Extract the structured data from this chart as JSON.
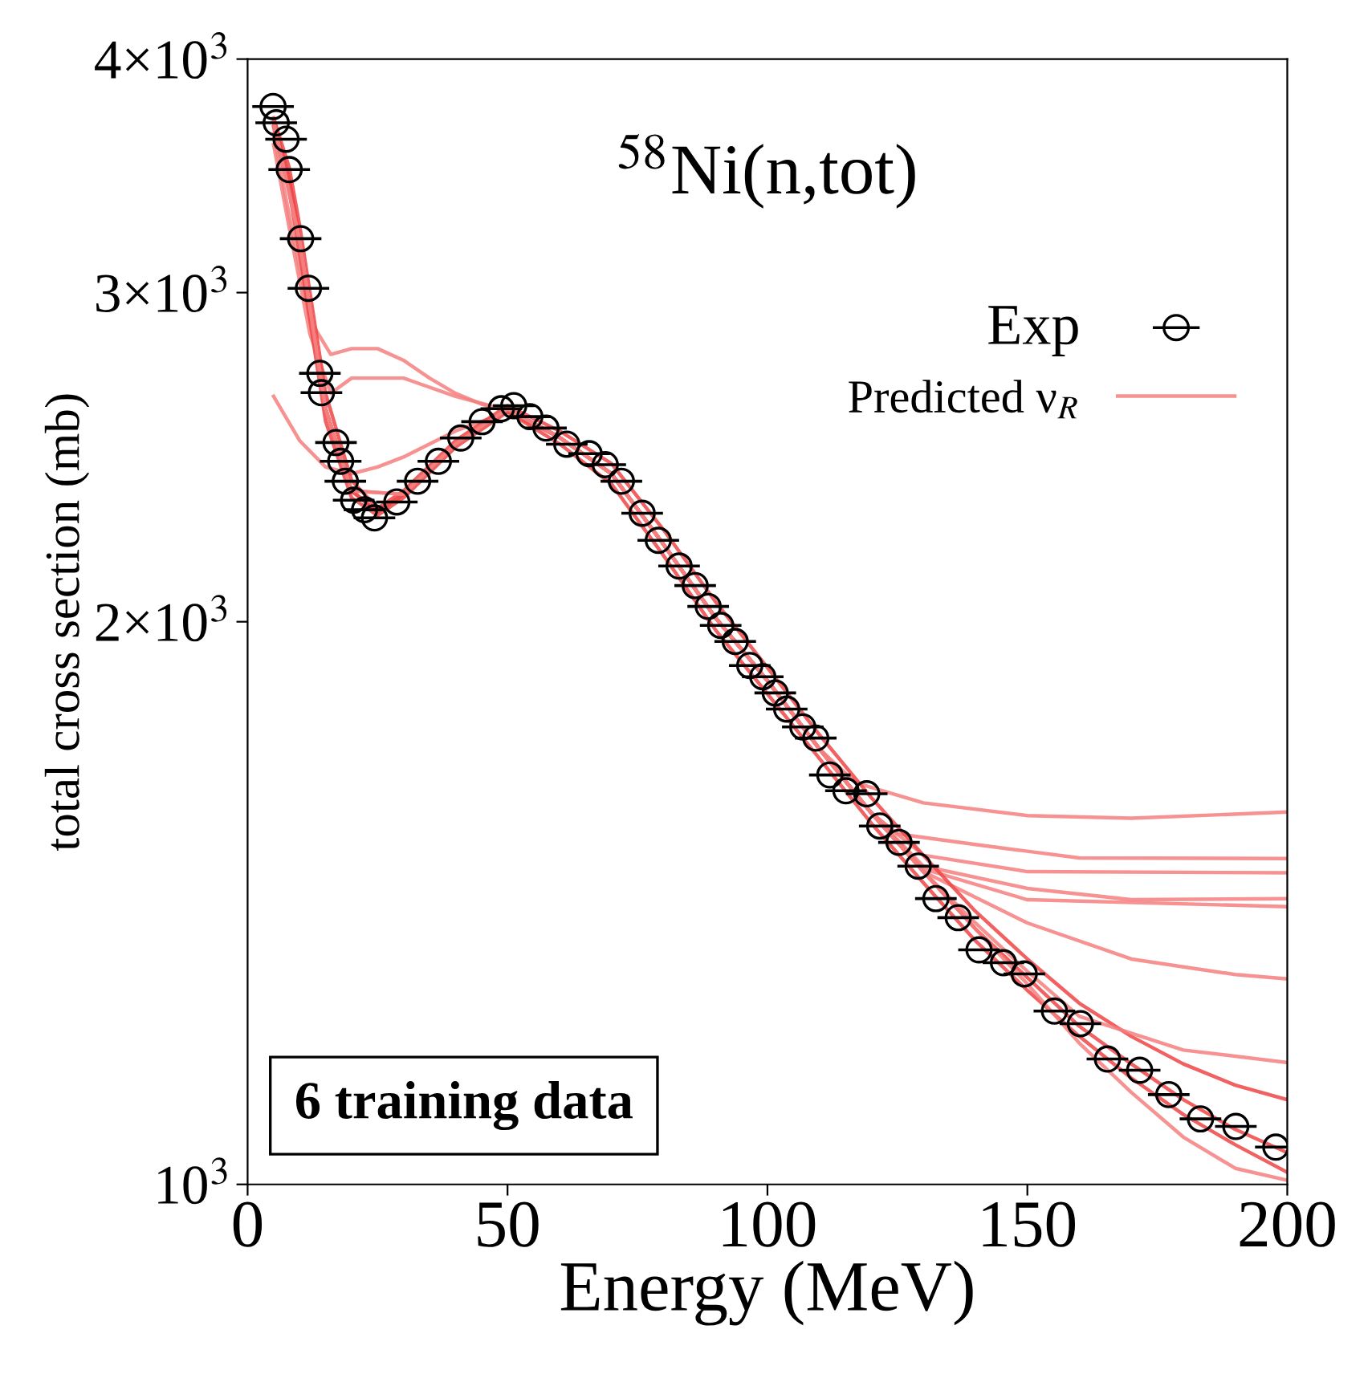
{
  "chart_data": {
    "type": "line",
    "title": "$^{58}$Ni(n,tot)",
    "xlabel": "Energy (MeV)",
    "ylabel": "total cross section (mb)",
    "log": "y",
    "xlim": [
      0,
      200
    ],
    "xticks": [
      0,
      50,
      100,
      150,
      200
    ],
    "ylim": [
      1000,
      4000
    ],
    "yticks": [
      {
        "value": 1000,
        "label": "10$^{3}$"
      },
      {
        "value": 2000,
        "label": "2×10$^{3}$"
      },
      {
        "value": 3000,
        "label": "3×10$^{3}$"
      },
      {
        "value": 4000,
        "label": "4×10$^{3}$"
      }
    ],
    "grid": false,
    "legend": "top right",
    "annotations": [
      "6 training data"
    ],
    "series": [
      {
        "name": "Predicted ν$_{R}$",
        "color": "#f47f7f",
        "x": [
          5,
          8,
          10,
          12,
          15,
          20,
          25,
          30,
          40,
          50,
          60,
          70,
          80,
          90,
          100,
          110,
          117,
          130,
          150,
          170,
          200
        ],
        "values": [
          3700,
          3450,
          3200,
          2950,
          2600,
          2350,
          2290,
          2340,
          2490,
          2600,
          2510,
          2400,
          2200,
          2010,
          1860,
          1710,
          1640,
          1600,
          1575,
          1570,
          1582
        ]
      },
      {
        "color": "#f47f7f",
        "x": [
          5,
          8,
          10,
          12,
          15,
          20,
          25,
          30,
          40,
          50,
          60,
          70,
          80,
          90,
          100,
          110,
          120,
          125,
          140,
          160,
          200
        ],
        "values": [
          3700,
          3450,
          3200,
          2950,
          2600,
          2350,
          2290,
          2340,
          2490,
          2600,
          2510,
          2400,
          2200,
          2010,
          1860,
          1710,
          1580,
          1540,
          1520,
          1495,
          1494
        ]
      },
      {
        "color": "#f47f7f",
        "x": [
          5,
          8,
          10,
          12,
          15,
          20,
          25,
          30,
          40,
          50,
          60,
          70,
          80,
          90,
          100,
          110,
          120,
          130,
          150,
          200
        ],
        "values": [
          3700,
          3450,
          3200,
          2950,
          2600,
          2350,
          2290,
          2340,
          2490,
          2600,
          2510,
          2400,
          2200,
          2010,
          1860,
          1710,
          1580,
          1500,
          1470,
          1468
        ]
      },
      {
        "color": "#f47f7f",
        "x": [
          5,
          8,
          12,
          16,
          20,
          25,
          30,
          35,
          40,
          45,
          50,
          60,
          70,
          80,
          90,
          100,
          110,
          120,
          130,
          150,
          170,
          200
        ],
        "values": [
          3650,
          3300,
          2900,
          2780,
          2800,
          2800,
          2760,
          2700,
          2650,
          2615,
          2590,
          2510,
          2400,
          2200,
          2010,
          1860,
          1710,
          1580,
          1480,
          1440,
          1420,
          1422
        ]
      },
      {
        "color": "#f47f7f",
        "x": [
          5,
          8,
          12,
          16,
          20,
          30,
          40,
          50,
          60,
          70,
          80,
          90,
          100,
          110,
          120,
          130,
          150,
          200
        ],
        "values": [
          3600,
          3250,
          2850,
          2650,
          2700,
          2700,
          2640,
          2595,
          2510,
          2400,
          2200,
          2010,
          1860,
          1710,
          1580,
          1475,
          1420,
          1408
        ]
      },
      {
        "color": "#f47f7f",
        "x": [
          5,
          10,
          15,
          20,
          25,
          30,
          40,
          50,
          60,
          70,
          80,
          90,
          100,
          110,
          120,
          130,
          150,
          170,
          190,
          200
        ],
        "values": [
          2640,
          2500,
          2420,
          2400,
          2420,
          2450,
          2530,
          2590,
          2510,
          2400,
          2200,
          2010,
          1860,
          1710,
          1580,
          1470,
          1380,
          1320,
          1295,
          1288
        ]
      },
      {
        "color": "#ef4545",
        "x": [
          5,
          8,
          10,
          12,
          15,
          20,
          25,
          30,
          40,
          50,
          60,
          70,
          80,
          90,
          100,
          110,
          120,
          130,
          140,
          150,
          160,
          170,
          180,
          190,
          200
        ],
        "values": [
          3700,
          3450,
          3200,
          2950,
          2600,
          2350,
          2290,
          2340,
          2490,
          2600,
          2510,
          2400,
          2200,
          2010,
          1860,
          1710,
          1580,
          1470,
          1370,
          1290,
          1215,
          1160,
          1110,
          1070,
          1040
        ]
      },
      {
        "color": "#ef4545",
        "x": [
          5,
          8,
          10,
          12,
          15,
          20,
          25,
          30,
          40,
          50,
          60,
          70,
          80,
          90,
          100,
          110,
          120,
          130,
          140,
          150,
          160,
          170,
          180,
          190,
          200
        ],
        "values": [
          3720,
          3500,
          3260,
          3000,
          2650,
          2380,
          2300,
          2350,
          2500,
          2610,
          2530,
          2430,
          2240,
          2050,
          1890,
          1740,
          1610,
          1500,
          1400,
          1320,
          1250,
          1200,
          1160,
          1130,
          1110
        ]
      },
      {
        "color": "#ef4545",
        "x": [
          5,
          8,
          10,
          12,
          15,
          20,
          25,
          30,
          40,
          50,
          60,
          70,
          80,
          90,
          100,
          110,
          120,
          130,
          140,
          150,
          160,
          170,
          180,
          190,
          200
        ],
        "values": [
          3680,
          3400,
          3150,
          2900,
          2560,
          2330,
          2280,
          2330,
          2480,
          2590,
          2490,
          2370,
          2170,
          1980,
          1830,
          1690,
          1560,
          1450,
          1350,
          1270,
          1200,
          1140,
          1090,
          1050,
          1015
        ]
      },
      {
        "color": "#f47f7f",
        "x": [
          5,
          10,
          15,
          20,
          30,
          40,
          50,
          60,
          70,
          80,
          90,
          100,
          110,
          120,
          130,
          140,
          150,
          160,
          180,
          200
        ],
        "values": [
          3700,
          3200,
          2600,
          2350,
          2340,
          2490,
          2600,
          2510,
          2400,
          2200,
          2010,
          1860,
          1710,
          1580,
          1470,
          1380,
          1300,
          1230,
          1180,
          1162
        ]
      },
      {
        "color": "#f47f7f",
        "x": [
          5,
          10,
          15,
          20,
          30,
          40,
          50,
          60,
          70,
          80,
          90,
          100,
          110,
          120,
          130,
          140,
          150,
          160,
          170,
          180,
          190,
          200
        ],
        "values": [
          3700,
          3200,
          2600,
          2350,
          2340,
          2490,
          2600,
          2510,
          2400,
          2200,
          2010,
          1860,
          1710,
          1580,
          1470,
          1370,
          1280,
          1190,
          1120,
          1060,
          1020,
          1005
        ]
      },
      {
        "name": "Exp",
        "type": "scatter",
        "color": "#000000",
        "marker": "circle",
        "x": [
          4.9,
          5.5,
          7.4,
          8.0,
          10.2,
          11.7,
          13.9,
          14.2,
          17.0,
          17.9,
          18.8,
          20.4,
          22.5,
          24.4,
          28.7,
          32.7,
          36.7,
          41.0,
          45.1,
          48.8,
          51.2,
          54.3,
          57.4,
          61.4,
          65.7,
          68.8,
          71.9,
          75.9,
          79.0,
          83.0,
          86.1,
          88.6,
          91.0,
          93.8,
          96.6,
          99.1,
          101.5,
          103.7,
          106.8,
          109.3,
          112.0,
          115.1,
          119.1,
          121.6,
          125.3,
          129.0,
          132.4,
          136.7,
          140.7,
          145.4,
          149.4,
          155.2,
          160.2,
          165.4,
          171.6,
          177.2,
          183.3,
          190.1,
          197.8
        ],
        "values": [
          3773,
          3698,
          3624,
          3491,
          3206,
          3016,
          2716,
          2652,
          2494,
          2437,
          2378,
          2323,
          2296,
          2273,
          2318,
          2378,
          2437,
          2508,
          2559,
          2600,
          2610,
          2575,
          2539,
          2489,
          2460,
          2427,
          2378,
          2286,
          2211,
          2142,
          2091,
          2038,
          1991,
          1952,
          1895,
          1869,
          1832,
          1796,
          1757,
          1733,
          1656,
          1624,
          1618,
          1555,
          1524,
          1480,
          1422,
          1389,
          1335,
          1314,
          1296,
          1238,
          1219,
          1167,
          1151,
          1117,
          1084,
          1074,
          1047
        ],
        "xerrors": [
          4,
          4,
          4,
          4,
          4,
          4,
          4,
          4,
          4,
          4,
          4,
          4,
          4,
          4,
          4,
          4,
          4,
          4,
          4,
          4,
          4,
          4,
          4,
          4,
          4,
          4,
          4,
          4,
          4,
          4,
          4,
          4,
          4,
          4,
          4,
          4,
          4,
          4,
          4,
          4,
          4,
          4,
          4,
          4,
          4,
          4,
          4,
          4,
          4,
          4,
          4,
          4,
          4,
          4,
          4,
          4,
          4,
          4,
          4
        ]
      }
    ]
  }
}
